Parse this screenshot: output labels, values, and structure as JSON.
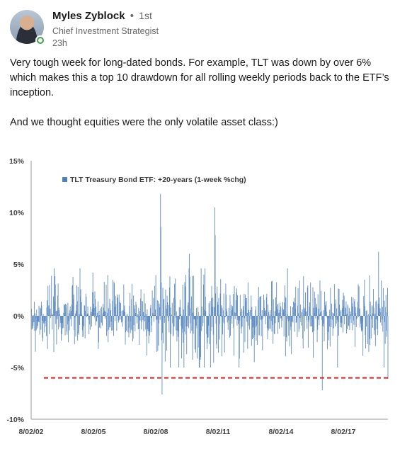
{
  "post": {
    "author_name": "Myles Zyblock",
    "separator": "•",
    "connection_degree": "1st",
    "headline": "Chief Investment Strategist",
    "timestamp": "23h",
    "text_line1": "Very tough week for long-dated bonds. For example, TLT was down by over 6%",
    "text_line2": "which makes this a top 10 drawdown for all rolling weekly periods back to the ETF’s",
    "text_line3": "inception.",
    "text_line4": "And we thought equities were the only volatile asset class:)"
  },
  "colors": {
    "series": "#4f81bd",
    "threshold_line": "#e0201b",
    "presence": "#44a14b"
  },
  "chart_data": {
    "type": "bar",
    "legend": "TLT Treasury Bond ETF: +20-years (1-week %chg)",
    "legend_position": "top-left",
    "ylim": [
      -10,
      15
    ],
    "yticks": [
      15,
      10,
      5,
      0,
      -5,
      -10
    ],
    "ytick_labels": [
      "15%",
      "10%",
      "5%",
      "0%",
      "-5%",
      "-10%"
    ],
    "xticks": [
      "8/02/02",
      "8/02/05",
      "8/02/08",
      "8/02/11",
      "8/02/14",
      "8/02/17"
    ],
    "x_start": "2002-08-02",
    "x_end": "2020-01-31",
    "threshold": -6,
    "threshold_style": "dashed",
    "grid": false,
    "notable_points": [
      {
        "date": "2008-12-05",
        "value": 11.8
      },
      {
        "date": "2008-12-12",
        "value": 8.6
      },
      {
        "date": "2009-01-02",
        "value": -7.6
      },
      {
        "date": "2011-08-05",
        "value": 10.5
      },
      {
        "date": "2011-08-12",
        "value": 7.8
      },
      {
        "date": "2010-05-07",
        "value": 6.0
      },
      {
        "date": "2016-11-11",
        "value": -7.2
      },
      {
        "date": "2019-08-16",
        "value": 6.2
      },
      {
        "date": "2020-01-31",
        "value": -6.1
      }
    ]
  }
}
